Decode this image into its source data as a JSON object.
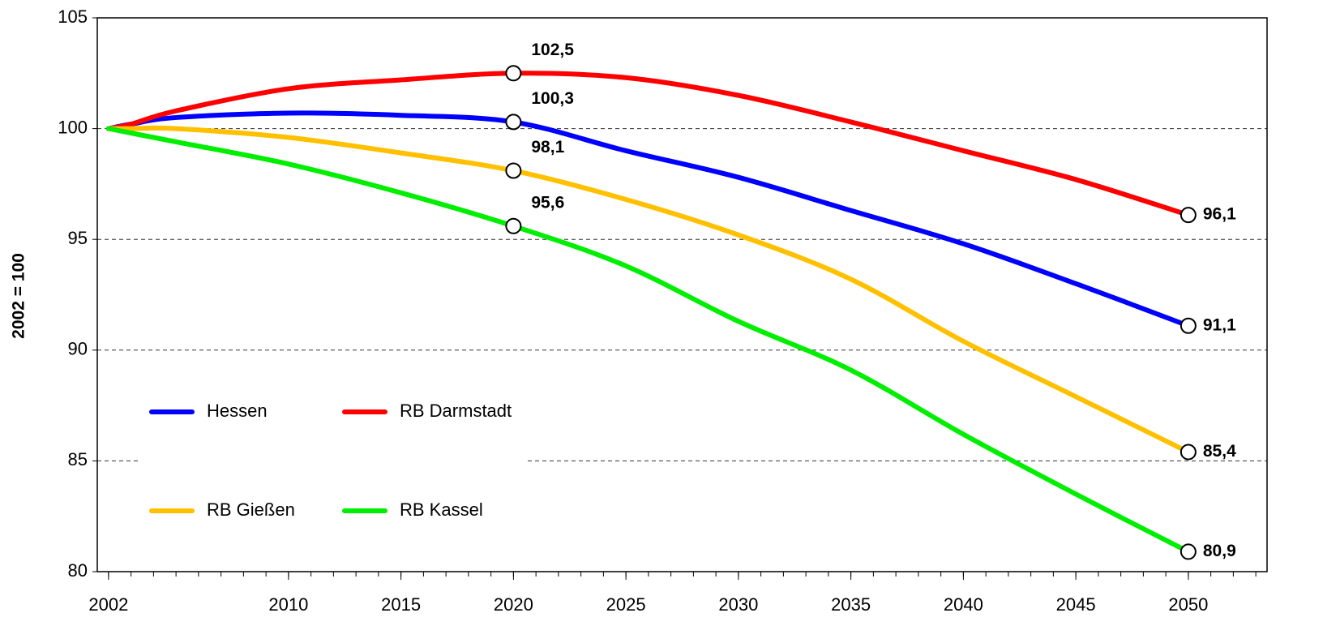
{
  "chart_data": {
    "type": "line",
    "y_label": "2002 = 100",
    "x": [
      2002,
      2003,
      2005,
      2010,
      2015,
      2020,
      2025,
      2030,
      2035,
      2040,
      2045,
      2050
    ],
    "series": [
      {
        "name": "Hessen",
        "color": "#0000ff",
        "values": [
          100,
          100.2,
          100.5,
          100.7,
          100.6,
          100.3,
          99.0,
          97.8,
          96.3,
          94.8,
          93.0,
          91.1
        ],
        "value_labels": [
          null,
          null,
          null,
          null,
          null,
          "100,3",
          null,
          null,
          null,
          null,
          null,
          "91,1"
        ]
      },
      {
        "name": "RB Darmstadt",
        "color": "#ff0000",
        "values": [
          100,
          100.2,
          100.8,
          101.8,
          102.2,
          102.5,
          102.3,
          101.5,
          100.3,
          99.0,
          97.7,
          96.1
        ],
        "value_labels": [
          null,
          null,
          null,
          null,
          null,
          "102,5",
          null,
          null,
          null,
          null,
          null,
          "96,1"
        ]
      },
      {
        "name": "RB Gießen",
        "color": "#ffc000",
        "values": [
          100,
          100.0,
          100.0,
          99.6,
          98.9,
          98.1,
          96.8,
          95.2,
          93.2,
          90.4,
          87.9,
          85.4
        ],
        "value_labels": [
          null,
          null,
          null,
          null,
          null,
          "98,1",
          null,
          null,
          null,
          null,
          null,
          "85,4"
        ]
      },
      {
        "name": "RB Kassel",
        "color": "#00ee00",
        "values": [
          100,
          99.8,
          99.4,
          98.4,
          97.1,
          95.6,
          93.8,
          91.3,
          89.1,
          86.2,
          83.5,
          80.9
        ],
        "value_labels": [
          null,
          null,
          null,
          null,
          null,
          "95,6",
          null,
          null,
          null,
          null,
          null,
          "80,9"
        ]
      }
    ],
    "xlim": [
      2001.5,
      2053.5
    ],
    "xticks": [
      2002,
      2010,
      2015,
      2020,
      2025,
      2030,
      2035,
      2040,
      2045,
      2050
    ],
    "ylim": [
      80,
      105
    ],
    "yticks": [
      80,
      85,
      90,
      95,
      100,
      105
    ],
    "grid": true
  }
}
